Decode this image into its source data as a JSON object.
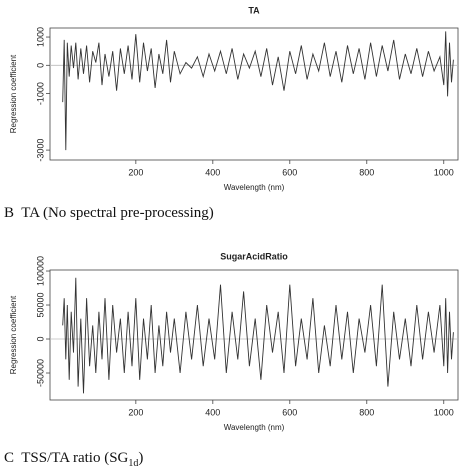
{
  "chart_data": [
    {
      "type": "line",
      "title": "TA",
      "x_label": "Wavelength (nm)",
      "y_label": "Regression coefficient",
      "x": [
        10,
        14,
        18,
        22,
        27,
        32,
        38,
        44,
        50,
        57,
        64,
        72,
        80,
        88,
        96,
        104,
        112,
        120,
        130,
        140,
        150,
        160,
        170,
        180,
        190,
        200,
        210,
        220,
        230,
        240,
        250,
        260,
        270,
        280,
        290,
        300,
        315,
        330,
        345,
        360,
        375,
        390,
        405,
        420,
        435,
        450,
        465,
        480,
        495,
        510,
        525,
        540,
        555,
        570,
        585,
        600,
        615,
        630,
        645,
        660,
        675,
        690,
        705,
        720,
        735,
        750,
        765,
        780,
        795,
        810,
        825,
        840,
        855,
        870,
        885,
        900,
        915,
        930,
        945,
        960,
        975,
        990,
        1000,
        1005,
        1010,
        1015,
        1020,
        1025
      ],
      "series": [
        {
          "color": "#333333",
          "values": [
            -1300,
            900,
            -3000,
            800,
            -400,
            700,
            -100,
            800,
            -500,
            600,
            -300,
            700,
            -600,
            500,
            100,
            800,
            -700,
            400,
            -400,
            500,
            -900,
            600,
            -300,
            700,
            -500,
            1100,
            -600,
            800,
            -200,
            600,
            -800,
            400,
            -300,
            900,
            -600,
            500,
            -300,
            100,
            -100,
            300,
            -400,
            400,
            -200,
            500,
            -300,
            600,
            -500,
            400,
            -100,
            500,
            -400,
            600,
            -700,
            300,
            -900,
            500,
            -300,
            700,
            -500,
            400,
            -200,
            800,
            -400,
            500,
            -600,
            700,
            -300,
            600,
            -500,
            800,
            -400,
            700,
            -200,
            900,
            -500,
            400,
            -300,
            600,
            -400,
            500,
            -200,
            300,
            -700,
            1200,
            -1100,
            800,
            -600,
            200
          ]
        }
      ],
      "xlim": [
        -23,
        1037
      ],
      "ylim": [
        -3350,
        1320
      ],
      "xticks": [
        200,
        400,
        600,
        800,
        1000
      ],
      "yticks": [
        -3000,
        -1000,
        0,
        1000
      ],
      "reference_line": 0
    },
    {
      "type": "line",
      "title": "SugarAcidRatio",
      "x_label": "Wavelength (nm)",
      "y_label": "Regression coefficient",
      "x": [
        10,
        14,
        18,
        22,
        27,
        32,
        38,
        44,
        50,
        57,
        64,
        72,
        80,
        88,
        96,
        104,
        112,
        120,
        130,
        140,
        150,
        160,
        170,
        180,
        190,
        200,
        210,
        220,
        230,
        240,
        250,
        260,
        270,
        280,
        290,
        300,
        315,
        330,
        345,
        360,
        375,
        390,
        405,
        420,
        435,
        450,
        465,
        480,
        495,
        510,
        525,
        540,
        555,
        570,
        585,
        600,
        615,
        630,
        645,
        660,
        675,
        690,
        705,
        720,
        735,
        750,
        765,
        780,
        795,
        810,
        825,
        840,
        855,
        870,
        885,
        900,
        915,
        930,
        945,
        960,
        975,
        990,
        1000,
        1005,
        1010,
        1015,
        1020,
        1025
      ],
      "series": [
        {
          "color": "#333333",
          "values": [
            20000,
            60000,
            -30000,
            50000,
            -60000,
            40000,
            -20000,
            90000,
            -70000,
            30000,
            -80000,
            60000,
            -40000,
            20000,
            -50000,
            40000,
            -30000,
            60000,
            -60000,
            50000,
            -20000,
            30000,
            -50000,
            40000,
            -40000,
            60000,
            -60000,
            30000,
            -30000,
            50000,
            -50000,
            20000,
            -40000,
            40000,
            -20000,
            30000,
            -50000,
            40000,
            -30000,
            50000,
            -40000,
            30000,
            -30000,
            80000,
            -50000,
            40000,
            -30000,
            70000,
            -40000,
            30000,
            -60000,
            50000,
            -20000,
            40000,
            -50000,
            80000,
            -40000,
            30000,
            -30000,
            60000,
            -50000,
            20000,
            -40000,
            50000,
            -30000,
            40000,
            -50000,
            30000,
            -20000,
            50000,
            -40000,
            80000,
            -70000,
            40000,
            -30000,
            30000,
            -40000,
            50000,
            -30000,
            40000,
            -20000,
            50000,
            -40000,
            60000,
            -50000,
            40000,
            -30000,
            10000
          ]
        }
      ],
      "xlim": [
        -23,
        1037
      ],
      "ylim": [
        -89700,
        101500
      ],
      "xticks": [
        200,
        400,
        600,
        800,
        1000
      ],
      "yticks": [
        -50000,
        0,
        50000,
        100000
      ],
      "reference_line": 0
    }
  ],
  "captions": [
    {
      "letter": "B",
      "text": "TA (No spectral pre-processing)"
    },
    {
      "letter": "C",
      "text": "TSS/TA ratio (SG",
      "sub": "1d",
      "end": ")"
    }
  ]
}
